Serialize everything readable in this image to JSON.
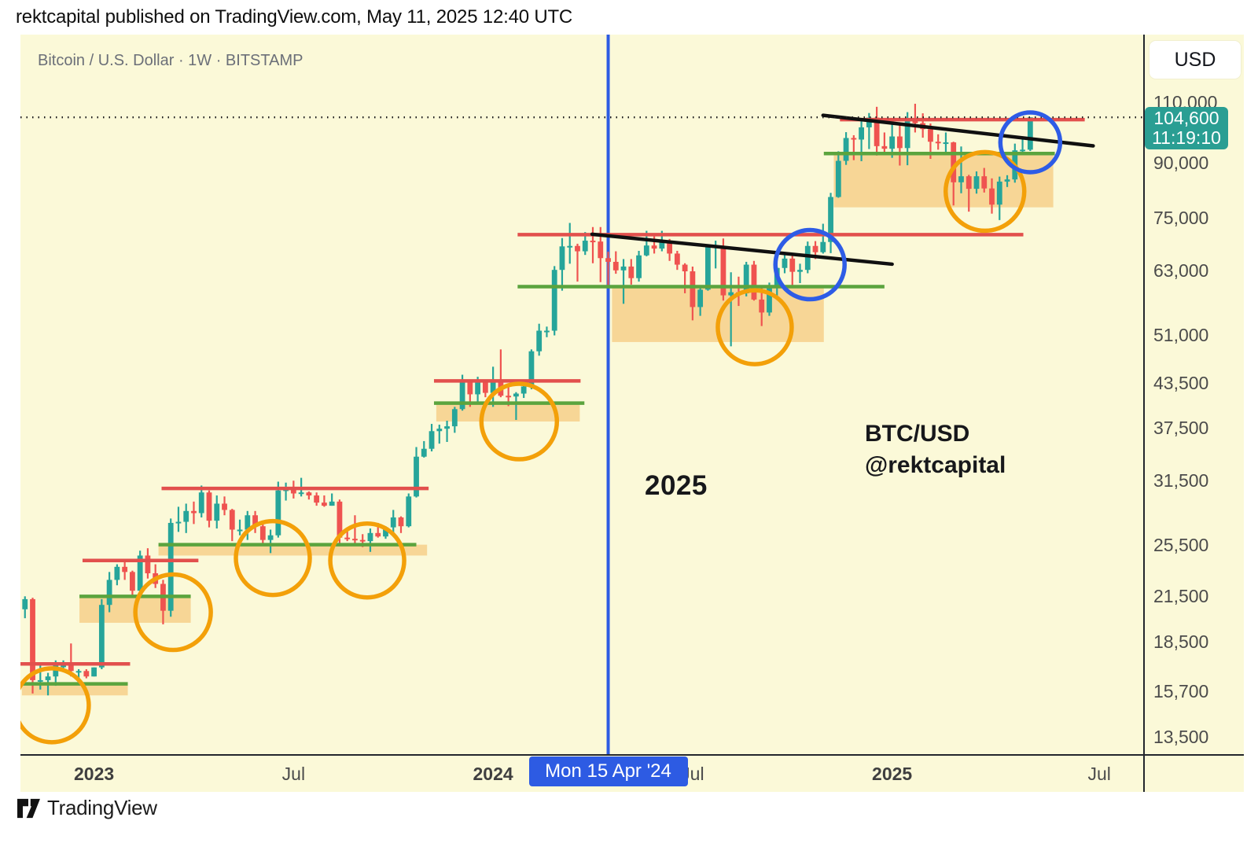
{
  "header": {
    "attribution": "rektcapital published on TradingView.com, May 11, 2025 12:40 UTC"
  },
  "chart_header": {
    "symbol_title": "Bitcoin / U.S. Dollar · 1W · BITSTAMP"
  },
  "price_scale": {
    "currency_button": "USD",
    "last_price_label": "104,600",
    "countdown": "11:19:10",
    "tick_prices": [
      110000,
      90000,
      75000,
      63000,
      51000,
      43500,
      37500,
      31500,
      25500,
      21500,
      18500,
      15700,
      13500
    ]
  },
  "time_axis": {
    "labels": [
      {
        "text": "2023",
        "week": 10,
        "kind": "year"
      },
      {
        "text": "Jul",
        "week": 36,
        "kind": "month"
      },
      {
        "text": "2024",
        "week": 62,
        "kind": "year"
      },
      {
        "text": "Jul",
        "week": 88,
        "kind": "month"
      },
      {
        "text": "2025",
        "week": 114,
        "kind": "year"
      },
      {
        "text": "Jul",
        "week": 141,
        "kind": "month"
      }
    ],
    "highlight_badge": {
      "text": "Mon 15 Apr '24",
      "week": 77
    }
  },
  "watermarks": {
    "year_label": "2025",
    "symbol": "BTC/USD",
    "handle": "@rektcapital"
  },
  "footer": {
    "brand": "TradingView"
  },
  "chart_data": {
    "type": "candlestick",
    "title": "Bitcoin / U.S. Dollar",
    "timeframe": "1W",
    "exchange": "BITSTAMP",
    "unit": "USD",
    "scale": "log",
    "ylim": [
      12800,
      118000
    ],
    "first_candle_week_start": "2022-10-24",
    "last_price": 104600,
    "candles_ohlc": [
      [
        19600,
        21000,
        19100,
        20600
      ],
      [
        20600,
        21500,
        20000,
        21300
      ],
      [
        21300,
        21400,
        15600,
        16300
      ],
      [
        16300,
        17200,
        15800,
        16300
      ],
      [
        16300,
        16700,
        15500,
        16500
      ],
      [
        16500,
        17400,
        16000,
        17100
      ],
      [
        17100,
        17400,
        16800,
        17100
      ],
      [
        17100,
        18400,
        16500,
        16800
      ],
      [
        16800,
        16900,
        16300,
        16800
      ],
      [
        16800,
        16900,
        16400,
        16500
      ],
      [
        16500,
        17000,
        16500,
        17000
      ],
      [
        17000,
        21300,
        16900,
        20900
      ],
      [
        20900,
        23300,
        20400,
        22700
      ],
      [
        22700,
        23900,
        22300,
        23700
      ],
      [
        23700,
        24200,
        22700,
        23300
      ],
      [
        23300,
        23400,
        21500,
        21900
      ],
      [
        21900,
        25000,
        21400,
        24600
      ],
      [
        24600,
        25200,
        22800,
        23200
      ],
      [
        23200,
        23900,
        22100,
        22400
      ],
      [
        22400,
        22700,
        19600,
        20500
      ],
      [
        20500,
        27800,
        20100,
        27400
      ],
      [
        27400,
        28900,
        26600,
        27500
      ],
      [
        27500,
        29200,
        26500,
        28500
      ],
      [
        28500,
        29400,
        27300,
        28300
      ],
      [
        28300,
        31000,
        27900,
        30300
      ],
      [
        30300,
        30500,
        27000,
        27600
      ],
      [
        27600,
        30000,
        26900,
        29200
      ],
      [
        29200,
        29900,
        28100,
        28600
      ],
      [
        28600,
        28700,
        25800,
        26800
      ],
      [
        26800,
        27700,
        26300,
        26800
      ],
      [
        26800,
        28500,
        25900,
        28100
      ],
      [
        28100,
        28500,
        26500,
        27100
      ],
      [
        27100,
        27400,
        25400,
        25900
      ],
      [
        25900,
        26800,
        24800,
        26300
      ],
      [
        26300,
        31400,
        26100,
        30500
      ],
      [
        30500,
        31300,
        29500,
        30600
      ],
      [
        30600,
        31500,
        29700,
        30200
      ],
      [
        30200,
        31800,
        29900,
        30300
      ],
      [
        30300,
        30400,
        29600,
        30000
      ],
      [
        30000,
        30300,
        29000,
        29300
      ],
      [
        29300,
        30000,
        28900,
        29000
      ],
      [
        29000,
        30200,
        29000,
        29400
      ],
      [
        29400,
        29600,
        25600,
        26100
      ],
      [
        26100,
        26800,
        25800,
        26000
      ],
      [
        26000,
        28100,
        25400,
        25900
      ],
      [
        25900,
        26400,
        25300,
        25800
      ],
      [
        25800,
        26900,
        24900,
        26500
      ],
      [
        26500,
        27400,
        26100,
        26200
      ],
      [
        26200,
        27100,
        26000,
        27000
      ],
      [
        27000,
        28600,
        26500,
        27900
      ],
      [
        27900,
        28000,
        26500,
        27100
      ],
      [
        27100,
        30200,
        27000,
        29900
      ],
      [
        29900,
        35200,
        29800,
        34100
      ],
      [
        34100,
        35900,
        34000,
        35000
      ],
      [
        35000,
        38000,
        34700,
        37100
      ],
      [
        37100,
        37900,
        35600,
        37400
      ],
      [
        37400,
        38400,
        35800,
        37700
      ],
      [
        37700,
        40200,
        36900,
        39900
      ],
      [
        39900,
        44700,
        39700,
        43800
      ],
      [
        43800,
        43900,
        40200,
        41900
      ],
      [
        41900,
        44400,
        40500,
        43700
      ],
      [
        43700,
        43900,
        41500,
        42100
      ],
      [
        42100,
        45900,
        40200,
        43900
      ],
      [
        43900,
        48600,
        41500,
        41700
      ],
      [
        41700,
        43400,
        40300,
        41600
      ],
      [
        41600,
        42200,
        38500,
        42000
      ],
      [
        42000,
        43800,
        41400,
        43000
      ],
      [
        43000,
        48600,
        42600,
        48300
      ],
      [
        48300,
        52900,
        47600,
        51700
      ],
      [
        51700,
        52400,
        50600,
        51700
      ],
      [
        51700,
        64000,
        50900,
        63200
      ],
      [
        63200,
        70200,
        59000,
        68300
      ],
      [
        68300,
        73800,
        64500,
        68400
      ],
      [
        68400,
        68900,
        60800,
        67200
      ],
      [
        67200,
        71600,
        66400,
        69600
      ],
      [
        69600,
        72800,
        64600,
        69400
      ],
      [
        69400,
        72800,
        60700,
        65700
      ],
      [
        65700,
        67100,
        59600,
        64900
      ],
      [
        64900,
        67200,
        62400,
        63100
      ],
      [
        63100,
        65500,
        56500,
        63900
      ],
      [
        63900,
        65500,
        60200,
        61500
      ],
      [
        61500,
        67300,
        60800,
        66300
      ],
      [
        66300,
        71900,
        66100,
        68500
      ],
      [
        68500,
        70600,
        66700,
        67800
      ],
      [
        67800,
        71900,
        67200,
        69600
      ],
      [
        69600,
        70000,
        65100,
        66700
      ],
      [
        66700,
        67300,
        63200,
        64300
      ],
      [
        64300,
        64600,
        58500,
        62900
      ],
      [
        62900,
        63900,
        53500,
        55900
      ],
      [
        55900,
        59800,
        54300,
        59200
      ],
      [
        59200,
        68400,
        59000,
        68200
      ],
      [
        68200,
        69600,
        63500,
        68300
      ],
      [
        68300,
        70100,
        57100,
        58100
      ],
      [
        58100,
        62700,
        49100,
        58700
      ],
      [
        58700,
        61800,
        56100,
        58500
      ],
      [
        58500,
        64900,
        57900,
        64300
      ],
      [
        64300,
        65100,
        57100,
        57300
      ],
      [
        57300,
        59800,
        52500,
        54900
      ],
      [
        54900,
        60600,
        54300,
        59500
      ],
      [
        59500,
        63800,
        57500,
        63600
      ],
      [
        63600,
        66500,
        62500,
        65600
      ],
      [
        65600,
        66300,
        60000,
        62800
      ],
      [
        62800,
        64500,
        60500,
        63200
      ],
      [
        63200,
        69400,
        62500,
        68400
      ],
      [
        68400,
        69500,
        65500,
        67000
      ],
      [
        67000,
        73600,
        66700,
        69300
      ],
      [
        69300,
        81500,
        66800,
        80400
      ],
      [
        80400,
        93500,
        80200,
        90600
      ],
      [
        90600,
        99600,
        89400,
        97700
      ],
      [
        97700,
        98600,
        90800,
        97200
      ],
      [
        97200,
        104100,
        90500,
        101200
      ],
      [
        101200,
        106100,
        94200,
        104500
      ],
      [
        104500,
        108300,
        92200,
        95100
      ],
      [
        95100,
        99500,
        93000,
        94300
      ],
      [
        94300,
        102800,
        91500,
        98200
      ],
      [
        98200,
        102700,
        89200,
        94500
      ],
      [
        94500,
        106400,
        89300,
        104200
      ],
      [
        104200,
        109400,
        99500,
        102600
      ],
      [
        102600,
        106000,
        97800,
        100600
      ],
      [
        100600,
        102500,
        91200,
        96500
      ],
      [
        96500,
        98900,
        94000,
        96100
      ],
      [
        96100,
        99500,
        93300,
        96300
      ],
      [
        96300,
        96500,
        78200,
        84400
      ],
      [
        84400,
        95000,
        81400,
        86100
      ],
      [
        86100,
        86500,
        76600,
        82600
      ],
      [
        82600,
        87500,
        81300,
        86100
      ],
      [
        86100,
        88500,
        81600,
        82700
      ],
      [
        82700,
        85500,
        76100,
        78400
      ],
      [
        78400,
        86000,
        74500,
        84600
      ],
      [
        84600,
        86400,
        83100,
        85200
      ],
      [
        85200,
        95900,
        84300,
        93800
      ],
      [
        93800,
        97900,
        92900,
        94000
      ],
      [
        94000,
        104600,
        93600,
        104600
      ]
    ],
    "annotations": {
      "current_price_line": {
        "price": 104600
      },
      "event_vline": {
        "week": 77,
        "label": "Mon 15 Apr '24"
      },
      "resistance_lines": [
        {
          "price": 17200,
          "week_from": 0.3,
          "week_to": 14.7
        },
        {
          "price": 24200,
          "week_from": 8.5,
          "week_to": 23.6
        },
        {
          "price": 30700,
          "week_from": 18.8,
          "week_to": 53.6
        },
        {
          "price": 43800,
          "week_from": 54.3,
          "week_to": 73.4
        },
        {
          "price": 71000,
          "week_from": 65.2,
          "week_to": 131.1
        },
        {
          "price": 103800,
          "week_from": 107.2,
          "week_to": 139.1
        }
      ],
      "support_lines": [
        {
          "price": 16100,
          "week_from": 0.6,
          "week_to": 14.4
        },
        {
          "price": 21500,
          "week_from": 8.1,
          "week_to": 22.6
        },
        {
          "price": 25500,
          "week_from": 18.4,
          "week_to": 52.0
        },
        {
          "price": 40700,
          "week_from": 54.3,
          "week_to": 73.9
        },
        {
          "price": 59800,
          "week_from": 65.2,
          "week_to": 113.0
        },
        {
          "price": 92800,
          "week_from": 105.1,
          "week_to": 135.2
        }
      ],
      "demand_boxes": [
        {
          "price_top": 16100,
          "price_bottom": 15500,
          "week_from": 0.6,
          "week_to": 14.4
        },
        {
          "price_top": 21500,
          "price_bottom": 19700,
          "week_from": 8.1,
          "week_to": 22.6
        },
        {
          "price_top": 25500,
          "price_bottom": 24600,
          "week_from": 18.4,
          "week_to": 53.4
        },
        {
          "price_top": 40700,
          "price_bottom": 38300,
          "week_from": 54.6,
          "week_to": 73.3
        },
        {
          "price_top": 59800,
          "price_bottom": 49800,
          "week_from": 77.5,
          "week_to": 105.1
        },
        {
          "price_top": 92800,
          "price_bottom": 77700,
          "week_from": 106.4,
          "week_to": 135.0
        }
      ],
      "trendlines": [
        {
          "from": {
            "week": 74.9,
            "price": 71100
          },
          "to": {
            "week": 114.0,
            "price": 64400
          }
        },
        {
          "from": {
            "week": 105.0,
            "price": 105300
          },
          "to": {
            "week": 140.2,
            "price": 95200
          }
        }
      ],
      "orange_circles": [
        {
          "week": 4.5,
          "price": 15000,
          "radius_px": 47
        },
        {
          "week": 20.3,
          "price": 20400,
          "radius_px": 48
        },
        {
          "week": 33.3,
          "price": 24400,
          "radius_px": 47
        },
        {
          "week": 45.6,
          "price": 24200,
          "radius_px": 47
        },
        {
          "week": 65.4,
          "price": 38300,
          "radius_px": 48
        },
        {
          "week": 96.1,
          "price": 52300,
          "radius_px": 47
        },
        {
          "week": 126.1,
          "price": 81900,
          "radius_px": 50
        }
      ],
      "blue_circles": [
        {
          "week": 103.3,
          "price": 64300,
          "radius_px": 44
        },
        {
          "week": 132.0,
          "price": 96300,
          "radius_px": 38
        }
      ]
    },
    "colors": {
      "background": "#fbf9d8",
      "candle_up": "#26a59a",
      "candle_down": "#ef5350",
      "resistance": "#e2504d",
      "support": "#5ba43e",
      "demand_box_fill": "#f39f29",
      "demand_box_opacity": 0.38,
      "orange_circle": "#f3a009",
      "blue_circle": "#2e5ce6",
      "event_line": "#2d5be3",
      "trendline": "#101010",
      "price_line": "#1c1c1c",
      "last_price_badge": "#2a9e93",
      "axis_line": "#23262d",
      "axis_text": "#4b4b4b"
    }
  }
}
